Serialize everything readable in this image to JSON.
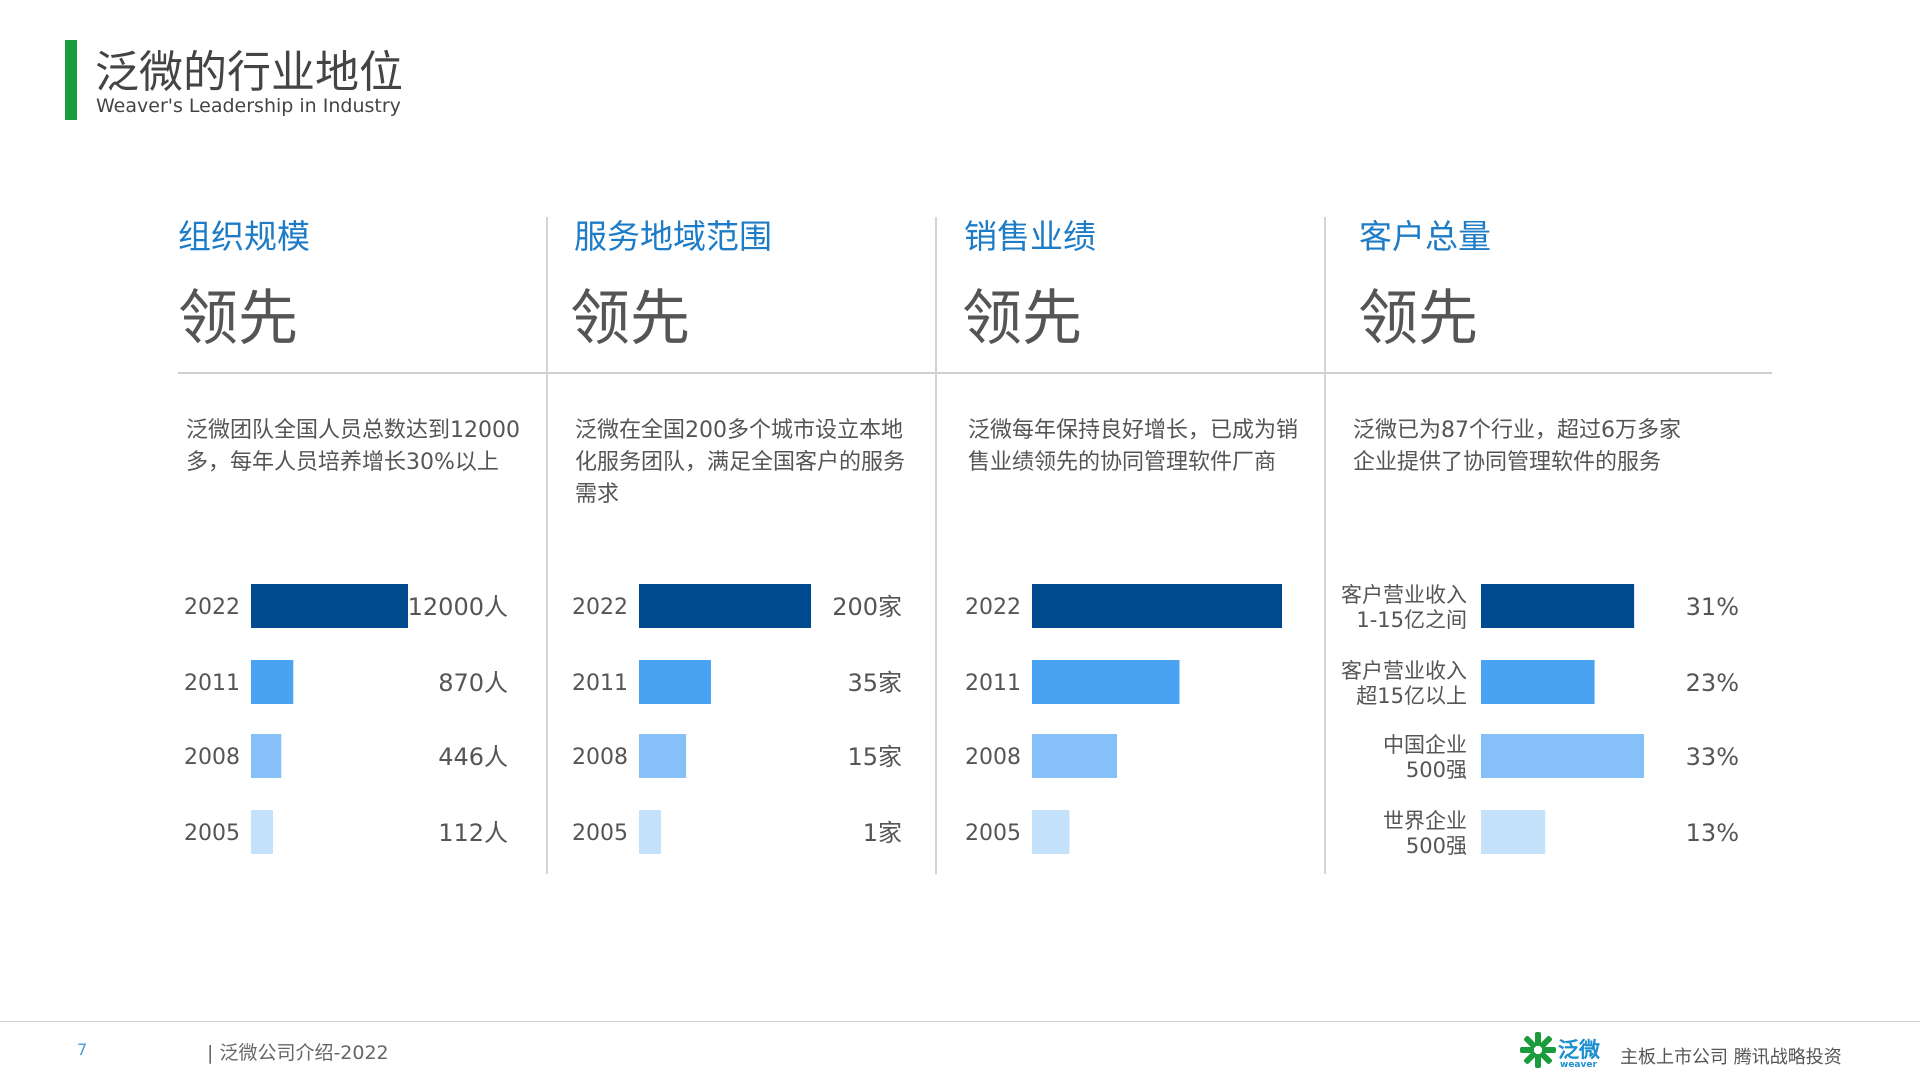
{
  "header": {
    "title": "泛微的行业地位",
    "subtitle": "Weaver's Leadership in Industry"
  },
  "panels": [
    {
      "title": "组织规模",
      "big": "领先",
      "desc": "泛微团队全国人员总数达到12000多，每年人员培养增长30%以上"
    },
    {
      "title": "服务地域范围",
      "big": "领先",
      "desc": "泛微在全国200多个城市设立本地化服务团队，满足全国客户的服务需求"
    },
    {
      "title": "销售业绩",
      "big": "领先",
      "desc": "泛微每年保持良好增长，已成为销售业绩领先的协同管理软件厂商"
    },
    {
      "title": "客户总量",
      "big": "领先",
      "desc": "泛微已为87个行业，超过6万多家企业提供了协同管理软件的服务"
    }
  ],
  "colors": [
    "#004a8f",
    "#4aa3f2",
    "#85c0f8",
    "#c4e1fb"
  ],
  "chart_data": [
    {
      "type": "bar",
      "categories": [
        "2022",
        "2011",
        "2008",
        "2005"
      ],
      "values": [
        12000,
        870,
        446,
        112
      ],
      "value_labels": [
        "12000人",
        "870人",
        "446人",
        "112人"
      ]
    },
    {
      "type": "bar",
      "categories": [
        "2022",
        "2011",
        "2008",
        "2005"
      ],
      "values": [
        200,
        35,
        15,
        1
      ],
      "value_labels": [
        "200家",
        "35家",
        "15家",
        "1家"
      ]
    },
    {
      "type": "bar",
      "categories": [
        "2022",
        "2011",
        "2008",
        "2005"
      ],
      "values": [
        100,
        59,
        34,
        15
      ],
      "value_labels": []
    },
    {
      "type": "bar",
      "categories": [
        [
          "客户营业收入",
          "1-15亿之间"
        ],
        [
          "客户营业收入",
          "超15亿以上"
        ],
        [
          "中国企业",
          "500强"
        ],
        [
          "世界企业",
          "500强"
        ]
      ],
      "values": [
        31,
        23,
        33,
        13
      ],
      "value_labels": [
        "31%",
        "23%",
        "33%",
        "13%"
      ]
    }
  ],
  "footer": {
    "page": "7",
    "text": "| 泛微公司介绍-2022",
    "logo_cn": "泛微",
    "logo_en": "weaver",
    "tagline": "主板上市公司  腾讯战略投资"
  }
}
